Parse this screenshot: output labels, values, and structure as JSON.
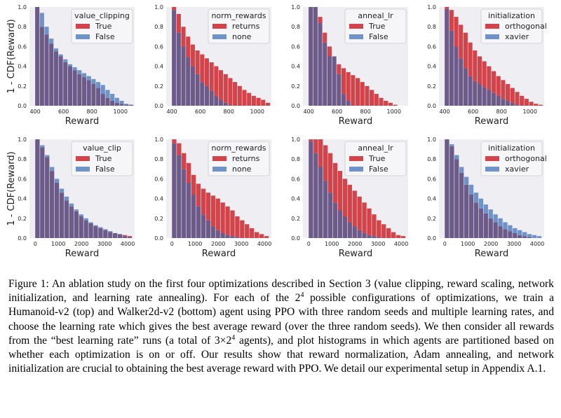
{
  "colors": {
    "true": "#d2434a",
    "false": "#6f93c7",
    "overlap": "#6c5b89",
    "panel_bg": "#eeeef3",
    "frame": "#cccccc"
  },
  "figure": {
    "caption": {
      "label": "Figure 1:",
      "lines": [
        "An ablation study on the first four optimizations described in Section 3 (value clipping,",
        "reward scaling, network initialization, and learning rate annealing). For each of the 2",
        "possible",
        "configurations of optimizations, we train a Humanoid-v2 (top) and Walker2d-v2 (bottom) agent",
        "using PPO with three random seeds and multiple learning rates, and choose the learning rate which",
        "gives the best average reward (over the three random seeds). We then consider all rewards from the",
        "“best learning rate” runs (a total of 3×2",
        " agents), and plot histograms in which agents are partitioned",
        "based on whether each optimization is on or off. Our results show that reward normalization, Adam",
        "annealing, and network initialization are crucial to obtaining the best average reward with PPO. We",
        "detail our experimental setup in Appendix A.1."
      ],
      "exponent": "4"
    }
  },
  "chart_data": [
    {
      "type": "bar",
      "environment": "Humanoid-v2",
      "xlabel": "Reward",
      "ylabel": "1 - CDF(Reward)",
      "xlim": [
        360,
        1100
      ],
      "ylim": [
        0,
        1.0
      ],
      "xticks": [
        "400",
        "600",
        "800",
        "1000"
      ],
      "xtick_values": [
        400,
        600,
        800,
        1000
      ],
      "yticks": [
        "0.0",
        "0.2",
        "0.4",
        "0.6",
        "0.8",
        "1.0"
      ],
      "legend_title": "value_clipping",
      "bin_start": 400,
      "bin_width": 33,
      "series": [
        {
          "name": "True",
          "values": [
            1.0,
            0.8,
            0.72,
            0.63,
            0.55,
            0.5,
            0.44,
            0.4,
            0.36,
            0.32,
            0.29,
            0.26,
            0.22,
            0.18,
            0.12,
            0.08,
            0.05,
            0.03,
            0.02,
            0.01,
            0.01
          ]
        },
        {
          "name": "False",
          "values": [
            1.0,
            0.94,
            0.8,
            0.68,
            0.58,
            0.52,
            0.47,
            0.42,
            0.39,
            0.36,
            0.33,
            0.3,
            0.27,
            0.24,
            0.21,
            0.16,
            0.12,
            0.08,
            0.05,
            0.02,
            0.01
          ]
        }
      ]
    },
    {
      "type": "bar",
      "environment": "Humanoid-v2",
      "xlabel": "",
      "ylabel": "",
      "xlim": [
        360,
        1100
      ],
      "ylim": [
        0,
        1.0
      ],
      "xticks": [
        "400",
        "600",
        "800",
        "1000"
      ],
      "xtick_values": [
        400,
        600,
        800,
        1000
      ],
      "yticks": [
        "0.0",
        "0.2",
        "0.4",
        "0.6",
        "0.8",
        "1.0"
      ],
      "legend_title": "norm_rewards",
      "bin_start": 400,
      "bin_width": 33,
      "series": [
        {
          "name": "returns",
          "values": [
            1.0,
            0.93,
            0.8,
            0.7,
            0.62,
            0.56,
            0.52,
            0.48,
            0.44,
            0.4,
            0.36,
            0.32,
            0.28,
            0.24,
            0.2,
            0.16,
            0.13,
            0.1,
            0.08,
            0.06,
            0.03
          ]
        },
        {
          "name": "none",
          "values": [
            0.97,
            0.74,
            0.6,
            0.49,
            0.4,
            0.32,
            0.24,
            0.2,
            0.15,
            0.1,
            0.06,
            0.03,
            0.01,
            0,
            0,
            0,
            0,
            0,
            0,
            0,
            0
          ]
        }
      ]
    },
    {
      "type": "bar",
      "environment": "Humanoid-v2",
      "xlabel": "Reward",
      "ylabel": "",
      "xlim": [
        360,
        1100
      ],
      "ylim": [
        0,
        1.0
      ],
      "xticks": [
        "400",
        "600",
        "800",
        "1000"
      ],
      "xtick_values": [
        400,
        600,
        800,
        1000
      ],
      "yticks": [
        "0.0",
        "0.2",
        "0.4",
        "0.6",
        "0.8",
        "1.0"
      ],
      "legend_title": "anneal_lr",
      "bin_start": 400,
      "bin_width": 33,
      "series": [
        {
          "name": "True",
          "values": [
            1.0,
            1.0,
            0.9,
            0.74,
            0.6,
            0.5,
            0.42,
            0.38,
            0.34,
            0.31,
            0.28,
            0.24,
            0.2,
            0.16,
            0.12,
            0.08,
            0.05,
            0.03,
            0.01,
            0,
            0
          ]
        },
        {
          "name": "False",
          "values": [
            1.0,
            1.0,
            0.84,
            0.64,
            0.5,
            0.5,
            0.32,
            0.12,
            0.05,
            0,
            0,
            0,
            0,
            0,
            0,
            0,
            0,
            0,
            0,
            0,
            0
          ]
        }
      ]
    },
    {
      "type": "bar",
      "environment": "Humanoid-v2",
      "xlabel": "Reward",
      "ylabel": "",
      "xlim": [
        360,
        1100
      ],
      "ylim": [
        0,
        1.0
      ],
      "xticks": [
        "400",
        "600",
        "800",
        "1000"
      ],
      "xtick_values": [
        400,
        600,
        800,
        1000
      ],
      "yticks": [
        "0.0",
        "0.2",
        "0.4",
        "0.6",
        "0.8",
        "1.0"
      ],
      "legend_title": "initialization",
      "bin_start": 400,
      "bin_width": 33,
      "series": [
        {
          "name": "orthogonal",
          "values": [
            1.0,
            0.97,
            0.9,
            0.82,
            0.74,
            0.64,
            0.56,
            0.5,
            0.45,
            0.4,
            0.35,
            0.3,
            0.26,
            0.22,
            0.18,
            0.14,
            0.1,
            0.07,
            0.04,
            0.02,
            0.01
          ]
        },
        {
          "name": "xavier",
          "values": [
            0.98,
            0.76,
            0.6,
            0.48,
            0.38,
            0.3,
            0.25,
            0.22,
            0.19,
            0.16,
            0.13,
            0.1,
            0.07,
            0.05,
            0.03,
            0.01,
            0,
            0,
            0,
            0,
            0
          ]
        }
      ]
    },
    {
      "type": "bar",
      "environment": "Walker2d-v2",
      "xlabel": "Reward",
      "ylabel": "1 - CDF(Reward)",
      "xlim": [
        -250,
        4300
      ],
      "ylim": [
        0,
        1.0
      ],
      "xticks": [
        "0",
        "1000",
        "2000",
        "3000",
        "4000"
      ],
      "xtick_values": [
        0,
        1000,
        2000,
        3000,
        4000
      ],
      "yticks": [
        "0.0",
        "0.2",
        "0.4",
        "0.6",
        "0.8",
        "1.0"
      ],
      "legend_title": "value_clip",
      "bin_start": 0,
      "bin_width": 210,
      "series": [
        {
          "name": "True",
          "values": [
            1.0,
            0.92,
            0.82,
            0.68,
            0.56,
            0.46,
            0.38,
            0.32,
            0.27,
            0.22,
            0.18,
            0.15,
            0.12,
            0.1,
            0.08,
            0.06,
            0.05,
            0.04,
            0.03,
            0.02
          ]
        },
        {
          "name": "False",
          "values": [
            1.0,
            0.94,
            0.84,
            0.72,
            0.6,
            0.5,
            0.42,
            0.35,
            0.29,
            0.24,
            0.2,
            0.16,
            0.13,
            0.11,
            0.09,
            0.07,
            0.05,
            0.04,
            0.02,
            0.01
          ]
        }
      ]
    },
    {
      "type": "bar",
      "environment": "Walker2d-v2",
      "xlabel": "Reward",
      "ylabel": "",
      "xlim": [
        -250,
        4300
      ],
      "ylim": [
        0,
        1.0
      ],
      "xticks": [
        "0",
        "1000",
        "2000",
        "3000",
        "4000"
      ],
      "xtick_values": [
        0,
        1000,
        2000,
        3000,
        4000
      ],
      "yticks": [
        "0.0",
        "0.2",
        "0.4",
        "0.6",
        "0.8",
        "1.0"
      ],
      "legend_title": "norm_rewards",
      "bin_start": 0,
      "bin_width": 210,
      "series": [
        {
          "name": "returns",
          "values": [
            1.0,
            0.96,
            0.86,
            0.76,
            0.64,
            0.55,
            0.5,
            0.46,
            0.43,
            0.4,
            0.36,
            0.32,
            0.28,
            0.22,
            0.18,
            0.14,
            0.1,
            0.06,
            0.04,
            0.02
          ]
        },
        {
          "name": "none",
          "values": [
            0.96,
            0.84,
            0.7,
            0.56,
            0.44,
            0.32,
            0.24,
            0.18,
            0.12,
            0.08,
            0.05,
            0.03,
            0.02,
            0.01,
            0,
            0,
            0,
            0,
            0,
            0
          ]
        }
      ]
    },
    {
      "type": "bar",
      "environment": "Walker2d-v2",
      "xlabel": "Reward",
      "ylabel": "",
      "xlim": [
        -250,
        4300
      ],
      "ylim": [
        0,
        1.0
      ],
      "xticks": [
        "0",
        "1000",
        "2000",
        "3000",
        "4000"
      ],
      "xtick_values": [
        0,
        1000,
        2000,
        3000,
        4000
      ],
      "yticks": [
        "0.0",
        "0.2",
        "0.4",
        "0.6",
        "0.8",
        "1.0"
      ],
      "legend_title": "anneal_lr",
      "bin_start": 0,
      "bin_width": 210,
      "series": [
        {
          "name": "True",
          "values": [
            1.0,
            1.0,
            1.0,
            0.94,
            0.86,
            0.76,
            0.68,
            0.6,
            0.54,
            0.48,
            0.42,
            0.36,
            0.3,
            0.24,
            0.18,
            0.14,
            0.1,
            0.06,
            0.03,
            0.02
          ]
        },
        {
          "name": "False",
          "values": [
            0.98,
            0.86,
            0.72,
            0.58,
            0.46,
            0.36,
            0.28,
            0.22,
            0.16,
            0.12,
            0.08,
            0.05,
            0.03,
            0.02,
            0.01,
            0,
            0,
            0,
            0,
            0
          ]
        }
      ]
    },
    {
      "type": "bar",
      "environment": "Walker2d-v2",
      "xlabel": "Reward",
      "ylabel": "",
      "xlim": [
        -250,
        4300
      ],
      "ylim": [
        0,
        1.0
      ],
      "xticks": [
        "0",
        "1000",
        "2000",
        "3000",
        "4000"
      ],
      "xtick_values": [
        0,
        1000,
        2000,
        3000,
        4000
      ],
      "yticks": [
        "0.0",
        "0.2",
        "0.4",
        "0.6",
        "0.8",
        "1.0"
      ],
      "legend_title": "initialization",
      "bin_start": 0,
      "bin_width": 210,
      "series": [
        {
          "name": "orthogonal",
          "values": [
            1.0,
            0.93,
            0.8,
            0.66,
            0.54,
            0.44,
            0.36,
            0.3,
            0.25,
            0.2,
            0.16,
            0.12,
            0.09,
            0.07,
            0.05,
            0.03,
            0.02,
            0.01,
            0,
            0
          ]
        },
        {
          "name": "xavier",
          "values": [
            1.0,
            0.95,
            0.84,
            0.72,
            0.62,
            0.54,
            0.46,
            0.4,
            0.34,
            0.29,
            0.24,
            0.2,
            0.16,
            0.13,
            0.1,
            0.08,
            0.06,
            0.04,
            0.03,
            0.02
          ]
        }
      ]
    }
  ]
}
